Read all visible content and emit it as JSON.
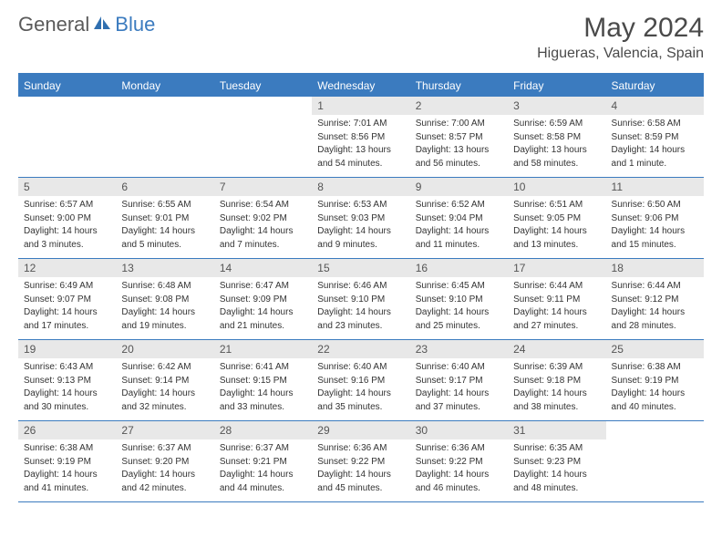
{
  "logo": {
    "general": "General",
    "blue": "Blue",
    "icon_color": "#2f6fb0"
  },
  "title": "May 2024",
  "location": "Higueras, Valencia, Spain",
  "colors": {
    "header_bg": "#3b7bbf",
    "header_text": "#ffffff",
    "daynum_bg": "#e8e8e8",
    "daynum_text": "#555555",
    "body_text": "#333333",
    "rule": "#3b7bbf"
  },
  "day_headers": [
    "Sunday",
    "Monday",
    "Tuesday",
    "Wednesday",
    "Thursday",
    "Friday",
    "Saturday"
  ],
  "weeks": [
    [
      null,
      null,
      null,
      {
        "n": "1",
        "sr": "Sunrise: 7:01 AM",
        "ss": "Sunset: 8:56 PM",
        "d1": "Daylight: 13 hours",
        "d2": "and 54 minutes."
      },
      {
        "n": "2",
        "sr": "Sunrise: 7:00 AM",
        "ss": "Sunset: 8:57 PM",
        "d1": "Daylight: 13 hours",
        "d2": "and 56 minutes."
      },
      {
        "n": "3",
        "sr": "Sunrise: 6:59 AM",
        "ss": "Sunset: 8:58 PM",
        "d1": "Daylight: 13 hours",
        "d2": "and 58 minutes."
      },
      {
        "n": "4",
        "sr": "Sunrise: 6:58 AM",
        "ss": "Sunset: 8:59 PM",
        "d1": "Daylight: 14 hours",
        "d2": "and 1 minute."
      }
    ],
    [
      {
        "n": "5",
        "sr": "Sunrise: 6:57 AM",
        "ss": "Sunset: 9:00 PM",
        "d1": "Daylight: 14 hours",
        "d2": "and 3 minutes."
      },
      {
        "n": "6",
        "sr": "Sunrise: 6:55 AM",
        "ss": "Sunset: 9:01 PM",
        "d1": "Daylight: 14 hours",
        "d2": "and 5 minutes."
      },
      {
        "n": "7",
        "sr": "Sunrise: 6:54 AM",
        "ss": "Sunset: 9:02 PM",
        "d1": "Daylight: 14 hours",
        "d2": "and 7 minutes."
      },
      {
        "n": "8",
        "sr": "Sunrise: 6:53 AM",
        "ss": "Sunset: 9:03 PM",
        "d1": "Daylight: 14 hours",
        "d2": "and 9 minutes."
      },
      {
        "n": "9",
        "sr": "Sunrise: 6:52 AM",
        "ss": "Sunset: 9:04 PM",
        "d1": "Daylight: 14 hours",
        "d2": "and 11 minutes."
      },
      {
        "n": "10",
        "sr": "Sunrise: 6:51 AM",
        "ss": "Sunset: 9:05 PM",
        "d1": "Daylight: 14 hours",
        "d2": "and 13 minutes."
      },
      {
        "n": "11",
        "sr": "Sunrise: 6:50 AM",
        "ss": "Sunset: 9:06 PM",
        "d1": "Daylight: 14 hours",
        "d2": "and 15 minutes."
      }
    ],
    [
      {
        "n": "12",
        "sr": "Sunrise: 6:49 AM",
        "ss": "Sunset: 9:07 PM",
        "d1": "Daylight: 14 hours",
        "d2": "and 17 minutes."
      },
      {
        "n": "13",
        "sr": "Sunrise: 6:48 AM",
        "ss": "Sunset: 9:08 PM",
        "d1": "Daylight: 14 hours",
        "d2": "and 19 minutes."
      },
      {
        "n": "14",
        "sr": "Sunrise: 6:47 AM",
        "ss": "Sunset: 9:09 PM",
        "d1": "Daylight: 14 hours",
        "d2": "and 21 minutes."
      },
      {
        "n": "15",
        "sr": "Sunrise: 6:46 AM",
        "ss": "Sunset: 9:10 PM",
        "d1": "Daylight: 14 hours",
        "d2": "and 23 minutes."
      },
      {
        "n": "16",
        "sr": "Sunrise: 6:45 AM",
        "ss": "Sunset: 9:10 PM",
        "d1": "Daylight: 14 hours",
        "d2": "and 25 minutes."
      },
      {
        "n": "17",
        "sr": "Sunrise: 6:44 AM",
        "ss": "Sunset: 9:11 PM",
        "d1": "Daylight: 14 hours",
        "d2": "and 27 minutes."
      },
      {
        "n": "18",
        "sr": "Sunrise: 6:44 AM",
        "ss": "Sunset: 9:12 PM",
        "d1": "Daylight: 14 hours",
        "d2": "and 28 minutes."
      }
    ],
    [
      {
        "n": "19",
        "sr": "Sunrise: 6:43 AM",
        "ss": "Sunset: 9:13 PM",
        "d1": "Daylight: 14 hours",
        "d2": "and 30 minutes."
      },
      {
        "n": "20",
        "sr": "Sunrise: 6:42 AM",
        "ss": "Sunset: 9:14 PM",
        "d1": "Daylight: 14 hours",
        "d2": "and 32 minutes."
      },
      {
        "n": "21",
        "sr": "Sunrise: 6:41 AM",
        "ss": "Sunset: 9:15 PM",
        "d1": "Daylight: 14 hours",
        "d2": "and 33 minutes."
      },
      {
        "n": "22",
        "sr": "Sunrise: 6:40 AM",
        "ss": "Sunset: 9:16 PM",
        "d1": "Daylight: 14 hours",
        "d2": "and 35 minutes."
      },
      {
        "n": "23",
        "sr": "Sunrise: 6:40 AM",
        "ss": "Sunset: 9:17 PM",
        "d1": "Daylight: 14 hours",
        "d2": "and 37 minutes."
      },
      {
        "n": "24",
        "sr": "Sunrise: 6:39 AM",
        "ss": "Sunset: 9:18 PM",
        "d1": "Daylight: 14 hours",
        "d2": "and 38 minutes."
      },
      {
        "n": "25",
        "sr": "Sunrise: 6:38 AM",
        "ss": "Sunset: 9:19 PM",
        "d1": "Daylight: 14 hours",
        "d2": "and 40 minutes."
      }
    ],
    [
      {
        "n": "26",
        "sr": "Sunrise: 6:38 AM",
        "ss": "Sunset: 9:19 PM",
        "d1": "Daylight: 14 hours",
        "d2": "and 41 minutes."
      },
      {
        "n": "27",
        "sr": "Sunrise: 6:37 AM",
        "ss": "Sunset: 9:20 PM",
        "d1": "Daylight: 14 hours",
        "d2": "and 42 minutes."
      },
      {
        "n": "28",
        "sr": "Sunrise: 6:37 AM",
        "ss": "Sunset: 9:21 PM",
        "d1": "Daylight: 14 hours",
        "d2": "and 44 minutes."
      },
      {
        "n": "29",
        "sr": "Sunrise: 6:36 AM",
        "ss": "Sunset: 9:22 PM",
        "d1": "Daylight: 14 hours",
        "d2": "and 45 minutes."
      },
      {
        "n": "30",
        "sr": "Sunrise: 6:36 AM",
        "ss": "Sunset: 9:22 PM",
        "d1": "Daylight: 14 hours",
        "d2": "and 46 minutes."
      },
      {
        "n": "31",
        "sr": "Sunrise: 6:35 AM",
        "ss": "Sunset: 9:23 PM",
        "d1": "Daylight: 14 hours",
        "d2": "and 48 minutes."
      },
      null
    ]
  ]
}
